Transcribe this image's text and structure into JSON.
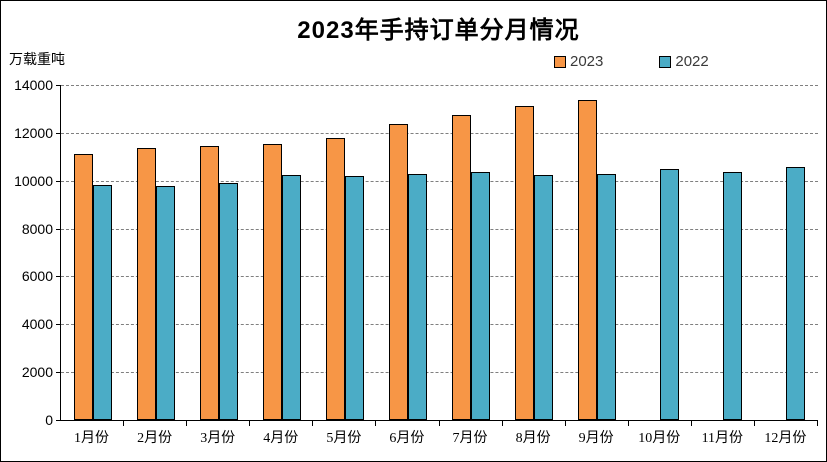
{
  "chart": {
    "title": "2023年手持订单分月情况",
    "unit_label": "万载重吨"
  },
  "chart_data": {
    "type": "bar",
    "title": "2023年手持订单分月情况",
    "xlabel": "",
    "ylabel": "万载重吨",
    "categories": [
      "1月份",
      "2月份",
      "3月份",
      "4月份",
      "5月份",
      "6月份",
      "7月份",
      "8月份",
      "9月份",
      "10月份",
      "11月份",
      "12月份"
    ],
    "series": [
      {
        "name": "2023",
        "color": "#F79646",
        "values": [
          11110,
          11360,
          11450,
          11520,
          11780,
          12380,
          12740,
          13120,
          13390,
          null,
          null,
          null
        ]
      },
      {
        "name": "2022",
        "color": "#4BACC6",
        "values": [
          9840,
          9800,
          9890,
          10250,
          10200,
          10270,
          10360,
          10220,
          10300,
          10470,
          10380,
          10570
        ]
      }
    ],
    "ylim": [
      0,
      14000
    ],
    "yticks": [
      0,
      2000,
      4000,
      6000,
      8000,
      10000,
      12000,
      14000
    ],
    "grid": "horizontal-dashed",
    "legend_position": "top-right",
    "bar_border_color": "#000000",
    "gridline_color": "#7f7f7f"
  }
}
